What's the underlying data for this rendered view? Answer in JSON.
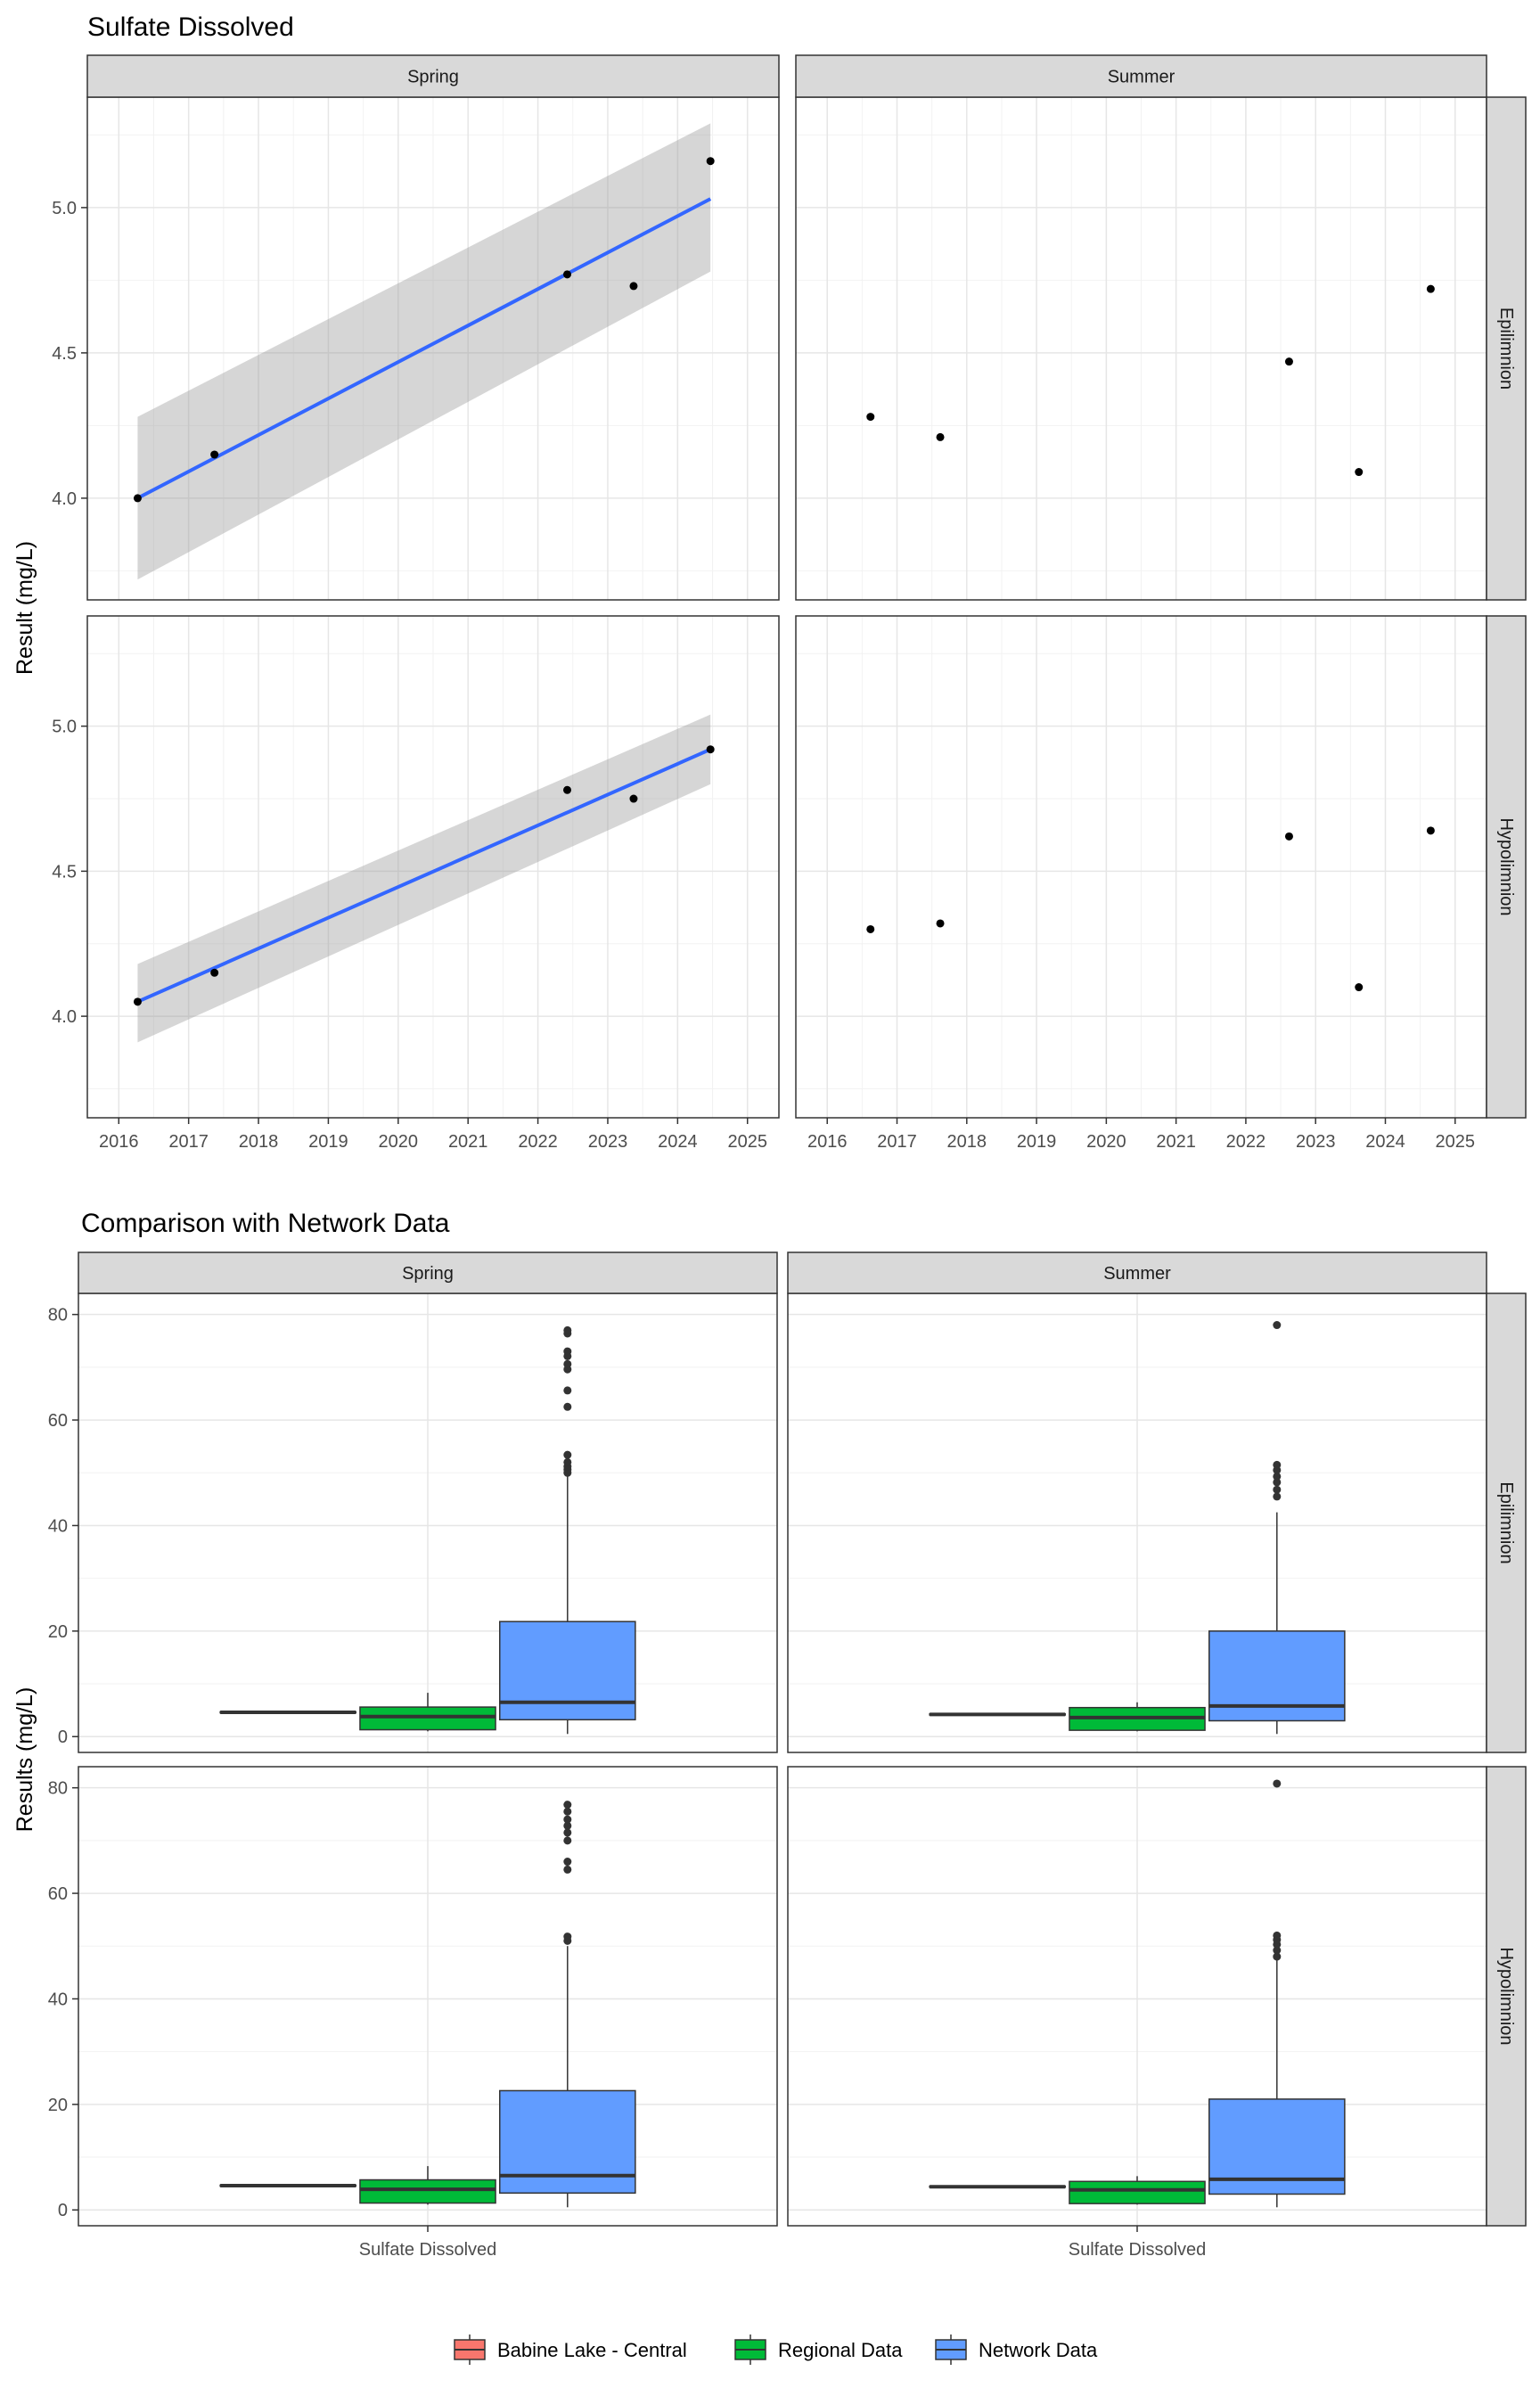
{
  "chart_data": [
    {
      "type": "scatter",
      "title": "Sulfate Dissolved",
      "ylabel": "Result (mg/L)",
      "xlabel": "",
      "x_ticks": [
        "2016",
        "2017",
        "2018",
        "2019",
        "2020",
        "2021",
        "2022",
        "2023",
        "2024",
        "2025"
      ],
      "xlim": [
        2015.55,
        2025.45
      ],
      "ylim": [
        3.65,
        5.38
      ],
      "y_ticks": [
        "4.0",
        "4.5",
        "5.0"
      ],
      "grid": true,
      "facet_cols": [
        "Spring",
        "Summer"
      ],
      "facet_rows": [
        "Epilimnion",
        "Hypolimnion"
      ],
      "panels": [
        {
          "season": "Spring",
          "layer": "Epilimnion",
          "points": [
            [
              2016.27,
              4.0
            ],
            [
              2017.37,
              4.15
            ],
            [
              2022.42,
              4.77
            ],
            [
              2023.37,
              4.73
            ],
            [
              2024.47,
              5.16
            ]
          ],
          "trend": {
            "x": [
              2016.27,
              2024.47
            ],
            "y": [
              4.0,
              5.03
            ],
            "ci_lower": [
              3.72,
              4.78
            ],
            "ci_upper": [
              4.28,
              5.29
            ]
          }
        },
        {
          "season": "Summer",
          "layer": "Epilimnion",
          "points": [
            [
              2016.62,
              4.28
            ],
            [
              2017.62,
              4.21
            ],
            [
              2022.62,
              4.47
            ],
            [
              2023.62,
              4.09
            ],
            [
              2024.65,
              4.72
            ]
          ]
        },
        {
          "season": "Spring",
          "layer": "Hypolimnion",
          "points": [
            [
              2016.27,
              4.05
            ],
            [
              2017.37,
              4.15
            ],
            [
              2022.42,
              4.78
            ],
            [
              2023.37,
              4.75
            ],
            [
              2024.47,
              4.92
            ]
          ],
          "trend": {
            "x": [
              2016.27,
              2024.47
            ],
            "y": [
              4.05,
              4.92
            ],
            "ci_lower": [
              3.91,
              4.8
            ],
            "ci_upper": [
              4.18,
              5.04
            ]
          }
        },
        {
          "season": "Summer",
          "layer": "Hypolimnion",
          "points": [
            [
              2016.62,
              4.3
            ],
            [
              2017.62,
              4.32
            ],
            [
              2022.62,
              4.62
            ],
            [
              2023.62,
              4.1
            ],
            [
              2024.65,
              4.64
            ]
          ]
        }
      ]
    },
    {
      "type": "box",
      "title": "Comparison with Network Data",
      "ylabel": "Results (mg/L)",
      "xlabel": "",
      "category": "Sulfate Dissolved",
      "ylim": [
        -3,
        84
      ],
      "y_ticks": [
        "0",
        "20",
        "40",
        "60",
        "80"
      ],
      "grid": true,
      "facet_cols": [
        "Spring",
        "Summer"
      ],
      "facet_rows": [
        "Epilimnion",
        "Hypolimnion"
      ],
      "legend": {
        "position": "bottom",
        "entries": [
          {
            "name": "Babine Lake - Central",
            "color": "#F8766D"
          },
          {
            "name": "Regional Data",
            "color": "#00BA38"
          },
          {
            "name": "Network Data",
            "color": "#619CFF"
          }
        ]
      },
      "panels": [
        {
          "season": "Spring",
          "layer": "Epilimnion",
          "boxes": [
            {
              "group": "Babine Lake - Central",
              "min": 4.4,
              "q1": 4.5,
              "median": 4.6,
              "q3": 4.7,
              "max": 4.8,
              "outliers": []
            },
            {
              "group": "Regional Data",
              "min": 1.0,
              "q1": 1.3,
              "median": 3.8,
              "q3": 5.6,
              "max": 8.3,
              "outliers": []
            },
            {
              "group": "Network Data",
              "min": 0.5,
              "q1": 3.2,
              "median": 6.5,
              "q3": 21.8,
              "max": 49.5,
              "outliers": [
                50.0,
                50.6,
                51.2,
                52.0,
                53.4,
                62.5,
                65.6,
                69.6,
                70.6,
                72.1,
                73.0,
                76.4,
                77.0
              ]
            }
          ]
        },
        {
          "season": "Summer",
          "layer": "Epilimnion",
          "boxes": [
            {
              "group": "Babine Lake - Central",
              "min": 4.0,
              "q1": 4.1,
              "median": 4.2,
              "q3": 4.3,
              "max": 4.4,
              "outliers": []
            },
            {
              "group": "Regional Data",
              "min": 1.0,
              "q1": 1.2,
              "median": 3.6,
              "q3": 5.5,
              "max": 6.5,
              "outliers": []
            },
            {
              "group": "Network Data",
              "min": 0.5,
              "q1": 3.0,
              "median": 5.8,
              "q3": 20.0,
              "max": 42.5,
              "outliers": [
                45.5,
                46.8,
                48.2,
                49.3,
                50.5,
                51.5,
                78.0
              ]
            }
          ]
        },
        {
          "season": "Spring",
          "layer": "Hypolimnion",
          "boxes": [
            {
              "group": "Babine Lake - Central",
              "min": 4.4,
              "q1": 4.5,
              "median": 4.6,
              "q3": 4.7,
              "max": 4.8,
              "outliers": []
            },
            {
              "group": "Regional Data",
              "min": 1.0,
              "q1": 1.3,
              "median": 3.9,
              "q3": 5.7,
              "max": 8.3,
              "outliers": []
            },
            {
              "group": "Network Data",
              "min": 0.5,
              "q1": 3.2,
              "median": 6.5,
              "q3": 22.6,
              "max": 50.0,
              "outliers": [
                51.0,
                51.8,
                64.5,
                66.0,
                70.0,
                71.5,
                72.8,
                74.0,
                75.5,
                76.8
              ]
            }
          ]
        },
        {
          "season": "Summer",
          "layer": "Hypolimnion",
          "boxes": [
            {
              "group": "Babine Lake - Central",
              "min": 4.2,
              "q1": 4.3,
              "median": 4.4,
              "q3": 4.5,
              "max": 4.6,
              "outliers": []
            },
            {
              "group": "Regional Data",
              "min": 1.0,
              "q1": 1.2,
              "median": 3.8,
              "q3": 5.4,
              "max": 6.4,
              "outliers": []
            },
            {
              "group": "Network Data",
              "min": 0.5,
              "q1": 3.0,
              "median": 5.8,
              "q3": 21.0,
              "max": 47.5,
              "outliers": [
                48.0,
                49.2,
                50.3,
                51.2,
                52.0,
                80.8
              ]
            }
          ]
        }
      ]
    }
  ]
}
